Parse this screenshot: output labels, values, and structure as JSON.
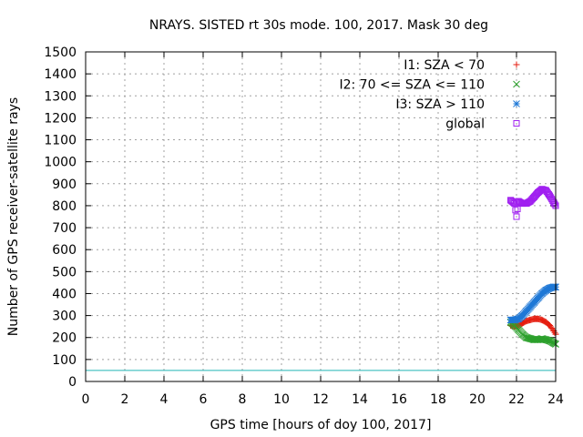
{
  "chart_data": {
    "type": "scatter",
    "title": "NRAYS. SISTED rt 30s mode. 100, 2017. Mask 30 deg",
    "xlabel": "GPS time [hours of doy 100, 2017]",
    "ylabel": "Number of GPS receiver-satellite rays",
    "xlim": [
      0,
      24
    ],
    "ylim": [
      0,
      1500
    ],
    "xticks": [
      0,
      2,
      4,
      6,
      8,
      10,
      12,
      14,
      16,
      18,
      20,
      22,
      24
    ],
    "yticks": [
      0,
      100,
      200,
      300,
      400,
      500,
      600,
      700,
      800,
      900,
      1000,
      1100,
      1200,
      1300,
      1400,
      1500
    ],
    "grid": true,
    "legend_position": "top-right",
    "threshold_line": {
      "y": 50,
      "color": "#22b5b5"
    },
    "series": [
      {
        "name": "I1: SZA < 70",
        "marker": "+",
        "color": "#e51e10",
        "x": [
          21.7,
          21.9,
          22.1,
          22.3,
          22.5,
          22.7,
          22.9,
          23.1,
          23.3,
          23.5,
          23.7,
          23.9,
          24.0
        ],
        "y": [
          255,
          250,
          255,
          265,
          275,
          280,
          285,
          285,
          280,
          270,
          255,
          230,
          215
        ]
      },
      {
        "name": "I2: 70 <= SZA <= 110",
        "marker": "x",
        "color": "#2ca02c",
        "x": [
          21.7,
          21.9,
          22.1,
          22.3,
          22.5,
          22.7,
          22.9,
          23.1,
          23.3,
          23.5,
          23.7,
          23.9,
          24.0
        ],
        "y": [
          270,
          255,
          235,
          215,
          200,
          195,
          190,
          190,
          195,
          190,
          185,
          175,
          170
        ]
      },
      {
        "name": "I3: SZA > 110",
        "marker": "*",
        "color": "#1f78d6",
        "x": [
          21.7,
          21.9,
          22.1,
          22.3,
          22.5,
          22.7,
          22.9,
          23.1,
          23.3,
          23.5,
          23.7,
          23.9,
          24.0
        ],
        "y": [
          280,
          280,
          285,
          300,
          320,
          340,
          360,
          380,
          400,
          415,
          425,
          430,
          430
        ]
      },
      {
        "name": "global",
        "marker": "square",
        "color": "#a020f0",
        "x": [
          21.7,
          21.9,
          22.0,
          22.1,
          22.3,
          22.5,
          22.7,
          22.9,
          23.1,
          23.3,
          23.5,
          23.7,
          23.9,
          24.0
        ],
        "y": [
          825,
          810,
          750,
          820,
          810,
          810,
          820,
          840,
          860,
          875,
          870,
          845,
          815,
          800
        ]
      }
    ]
  }
}
